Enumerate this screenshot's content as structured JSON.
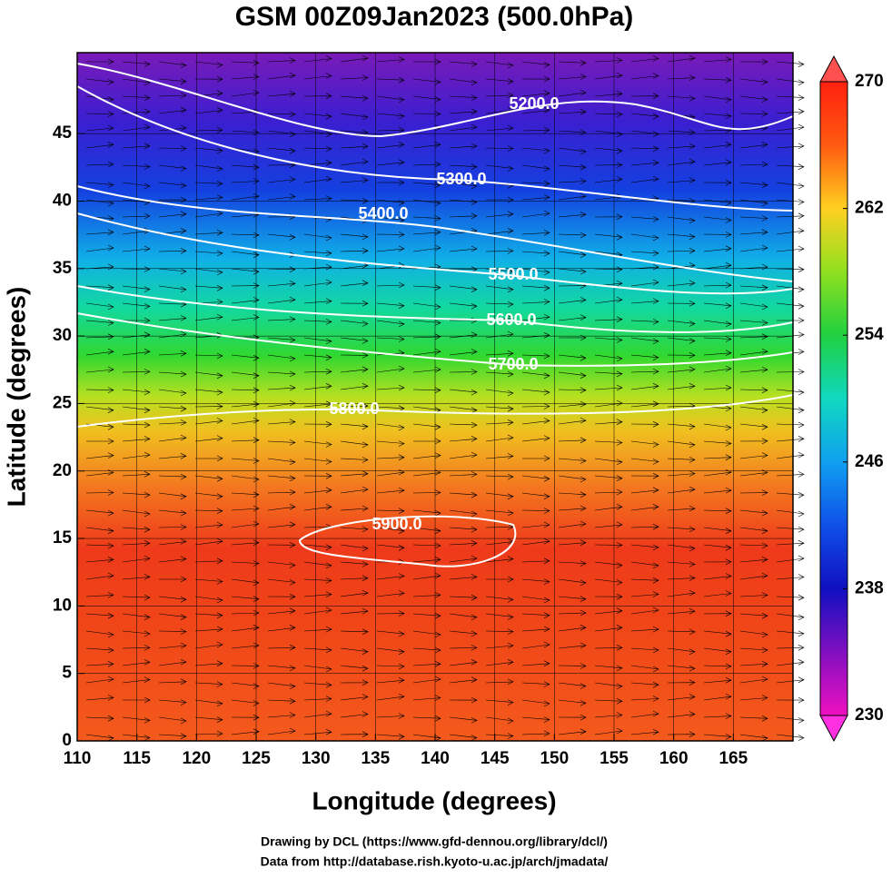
{
  "chart_data": {
    "type": "map",
    "title": "GSM 00Z09Jan2023 (500.0hPa)",
    "x_label": "Longitude (degrees)",
    "y_label": "Latitude  (degrees)",
    "xlim": [
      110,
      170
    ],
    "ylim": [
      0,
      51
    ],
    "xticks": [
      110,
      115,
      120,
      125,
      130,
      135,
      140,
      145,
      150,
      155,
      160,
      165
    ],
    "yticks": [
      0,
      5,
      10,
      15,
      20,
      25,
      30,
      35,
      40,
      45
    ],
    "grid": true,
    "contours": [
      {
        "value": 5200,
        "label": "5200.0"
      },
      {
        "value": 5300,
        "label": "5300.0"
      },
      {
        "value": 5400,
        "label": "5400.0"
      },
      {
        "value": 5500,
        "label": "5500.0"
      },
      {
        "value": 5600,
        "label": "5600.0"
      },
      {
        "value": 5700,
        "label": "5700.0"
      },
      {
        "value": 5800,
        "label": "5800.0"
      },
      {
        "value": 5900,
        "label": "5900.0"
      }
    ],
    "colorbar": {
      "lim": [
        230,
        270
      ],
      "ticks": [
        230,
        238,
        246,
        254,
        262,
        270
      ]
    },
    "credits": [
      "Drawing by DCL (https://www.gfd-dennou.org/library/dcl/)",
      "Data from http://database.rish.kyoto-u.ac.jp/arch/jmadata/"
    ]
  }
}
